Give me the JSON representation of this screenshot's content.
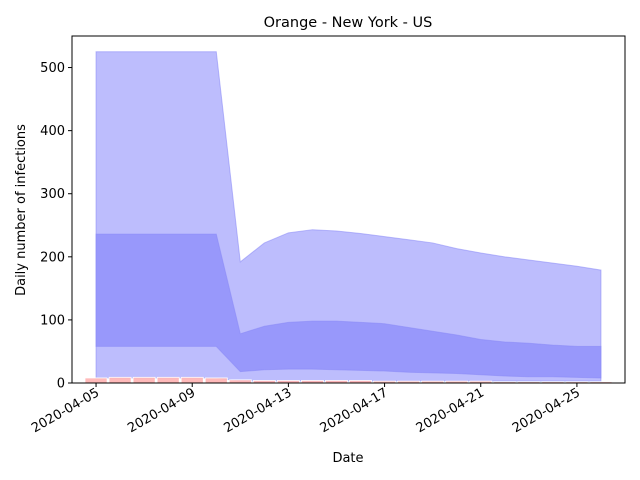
{
  "chart_data": {
    "type": "area",
    "title": "Orange - New York - US",
    "xlabel": "Date",
    "ylabel": "Daily number of infections",
    "x_start": "2020-04-05",
    "xlim": [
      "2020-04-04",
      "2020-04-27"
    ],
    "ylim": [
      0,
      550
    ],
    "x_ticks": [
      "2020-04-05",
      "2020-04-09",
      "2020-04-13",
      "2020-04-17",
      "2020-04-21",
      "2020-04-25"
    ],
    "y_ticks": [
      0,
      100,
      200,
      300,
      400,
      500
    ],
    "grid": false,
    "colors": {
      "outer_band": "#bdbdfd",
      "inner_band": "#9898fb",
      "band_edge": "#8888f5",
      "bars": "#ffb3b3"
    },
    "series": [
      {
        "role": "outer_band",
        "dates": [
          "2020-04-05",
          "2020-04-10",
          "2020-04-11",
          "2020-04-12",
          "2020-04-13",
          "2020-04-14",
          "2020-04-15",
          "2020-04-16",
          "2020-04-17",
          "2020-04-18",
          "2020-04-19",
          "2020-04-20",
          "2020-04-21",
          "2020-04-22",
          "2020-04-23",
          "2020-04-24",
          "2020-04-25",
          "2020-04-26"
        ],
        "upper": [
          525,
          525,
          192,
          222,
          238,
          243,
          241,
          237,
          232,
          227,
          222,
          213,
          206,
          200,
          195,
          190,
          185,
          179
        ],
        "lower": [
          8,
          8,
          3,
          3,
          3,
          3,
          3,
          3,
          3,
          3,
          3,
          3,
          3,
          3,
          3,
          3,
          3,
          3
        ]
      },
      {
        "role": "inner_band",
        "dates": [
          "2020-04-05",
          "2020-04-10",
          "2020-04-11",
          "2020-04-12",
          "2020-04-13",
          "2020-04-14",
          "2020-04-15",
          "2020-04-16",
          "2020-04-17",
          "2020-04-18",
          "2020-04-19",
          "2020-04-20",
          "2020-04-21",
          "2020-04-22",
          "2020-04-23",
          "2020-04-24",
          "2020-04-25",
          "2020-04-26"
        ],
        "upper": [
          236,
          236,
          78,
          90,
          96,
          98,
          98,
          96,
          94,
          88,
          82,
          76,
          69,
          65,
          63,
          60,
          58,
          58
        ],
        "lower": [
          58,
          58,
          18,
          21,
          22,
          22,
          21,
          20,
          19,
          17,
          16,
          15,
          13,
          11,
          10,
          10,
          9,
          8
        ]
      }
    ],
    "bars": {
      "dates": [
        "2020-04-05",
        "2020-04-06",
        "2020-04-07",
        "2020-04-08",
        "2020-04-09",
        "2020-04-10",
        "2020-04-11",
        "2020-04-12",
        "2020-04-13",
        "2020-04-14",
        "2020-04-15",
        "2020-04-16",
        "2020-04-17",
        "2020-04-18",
        "2020-04-19",
        "2020-04-20",
        "2020-04-21",
        "2020-04-22",
        "2020-04-23",
        "2020-04-24",
        "2020-04-25",
        "2020-04-26"
      ],
      "values": [
        8,
        9,
        9,
        9,
        9,
        8,
        5,
        4,
        4,
        4,
        4,
        4,
        3,
        3,
        3,
        3,
        3,
        2,
        2,
        2,
        2,
        2
      ]
    }
  }
}
